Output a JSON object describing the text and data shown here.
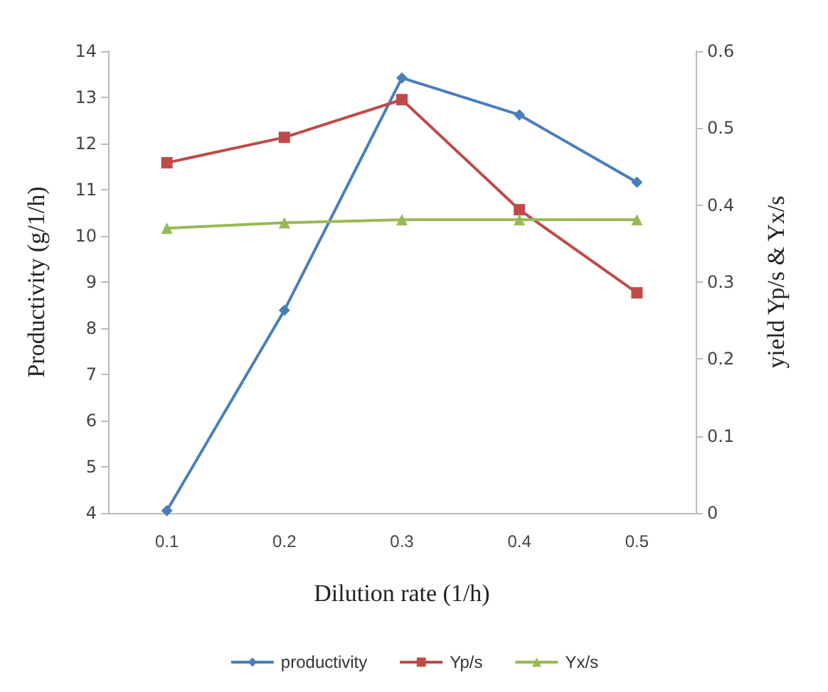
{
  "chart_data": {
    "type": "line",
    "xlabel": "Dilution rate (1/h)",
    "ylabel": "Productivity (g/1/h)",
    "y2label": "yield Yp/s & Yx/s",
    "categories": [
      "0.1",
      "0.2",
      "0.3",
      "0.4",
      "0.5"
    ],
    "series": [
      {
        "name": "productivity",
        "color": "#4a7ebb",
        "marker": "diamond",
        "values": [
          4.05,
          8.39,
          13.42,
          12.62,
          11.16
        ]
      },
      {
        "name": "Yp/s",
        "color": "#be4b48",
        "marker": "square",
        "axis": "y2",
        "values": [
          0.455,
          0.488,
          0.537,
          0.394,
          0.286
        ]
      },
      {
        "name": "Yx/s",
        "color": "#98b954",
        "marker": "triangle",
        "axis": "y2",
        "values": [
          0.37,
          0.377,
          0.381,
          0.381,
          0.381
        ]
      }
    ],
    "ylim": [
      4,
      14
    ],
    "yticks": [
      4,
      5,
      6,
      7,
      8,
      9,
      10,
      11,
      12,
      13,
      14
    ],
    "y2lim": [
      0,
      0.6
    ],
    "y2ticks": [
      0,
      0.1,
      0.2,
      0.3,
      0.4,
      0.5,
      0.6
    ],
    "grid": false,
    "legend": "bottom"
  }
}
